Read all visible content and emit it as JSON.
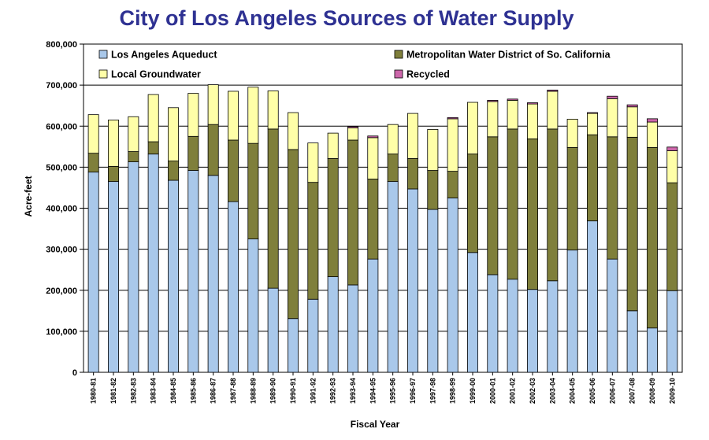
{
  "chart_data": {
    "type": "bar",
    "stacked": true,
    "title": "City of Los Angeles Sources of Water Supply",
    "xlabel": "Fiscal Year",
    "ylabel": "Acre-feet",
    "ylim": [
      0,
      800000
    ],
    "yticks": [
      "0",
      "100,000",
      "200,000",
      "300,000",
      "400,000",
      "500,000",
      "600,000",
      "700,000",
      "800,000"
    ],
    "grid": true,
    "legend_position": "top",
    "categories": [
      "1980-81",
      "1981-82",
      "1982-83",
      "1983-84",
      "1984-85",
      "1985-86",
      "1986-87",
      "1987-88",
      "1988-89",
      "1989-90",
      "1990-91",
      "1991-92",
      "1992-93",
      "1993-94",
      "1994-95",
      "1995-96",
      "1996-97",
      "1997-98",
      "1998-99",
      "1999-00",
      "2000-01",
      "2001-02",
      "2002-03",
      "2003-04",
      "2004-05",
      "2005-06",
      "2006-07",
      "2007-08",
      "2008-09",
      "2009-10"
    ],
    "series": [
      {
        "name": "Los Angeles Aqueduct",
        "color": "#a9c8ea",
        "values": [
          488000,
          465000,
          513000,
          532000,
          468000,
          492000,
          480000,
          416000,
          325000,
          205000,
          131000,
          178000,
          233000,
          213000,
          276000,
          465000,
          447000,
          397000,
          425000,
          292000,
          238000,
          227000,
          202000,
          223000,
          298000,
          369000,
          276000,
          150000,
          108000,
          199000
        ]
      },
      {
        "name": "Metropolitan Water District of So. California",
        "color": "#7f7f3b",
        "values": [
          46000,
          37000,
          25000,
          30000,
          47000,
          83000,
          124000,
          150000,
          233000,
          388000,
          412000,
          285000,
          288000,
          353000,
          195000,
          67000,
          74000,
          95000,
          65000,
          240000,
          336000,
          366000,
          367000,
          370000,
          250000,
          210000,
          298000,
          423000,
          440000,
          263000
        ]
      },
      {
        "name": "Local Groundwater",
        "color": "#ffffa8",
        "values": [
          94000,
          113000,
          85000,
          115000,
          130000,
          105000,
          97000,
          119000,
          137000,
          93000,
          90000,
          96000,
          62000,
          30000,
          101000,
          72000,
          110000,
          100000,
          128000,
          126000,
          86000,
          70000,
          85000,
          92000,
          69000,
          52000,
          93000,
          74000,
          62000,
          78000
        ]
      },
      {
        "name": "Recycled",
        "color": "#cc66aa",
        "values": [
          0,
          0,
          0,
          0,
          0,
          0,
          0,
          0,
          0,
          0,
          0,
          0,
          0,
          3000,
          4000,
          0,
          0,
          0,
          3000,
          0,
          3000,
          3000,
          3000,
          3000,
          0,
          2000,
          6000,
          5000,
          8000,
          9000
        ]
      }
    ]
  }
}
